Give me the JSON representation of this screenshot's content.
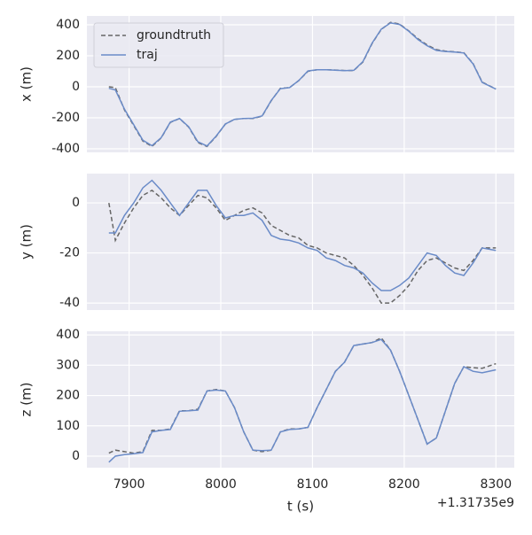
{
  "chart_data": [
    {
      "type": "line",
      "ylabel": "x (m)",
      "legend": "upper left",
      "grid": true,
      "x": [
        7878,
        7885,
        7895,
        7905,
        7915,
        7925,
        7935,
        7945,
        7955,
        7965,
        7975,
        7985,
        7995,
        8005,
        8015,
        8025,
        8035,
        8045,
        8055,
        8065,
        8075,
        8085,
        8095,
        8105,
        8115,
        8125,
        8135,
        8145,
        8155,
        8165,
        8175,
        8185,
        8195,
        8205,
        8215,
        8225,
        8235,
        8245,
        8255,
        8265,
        8275,
        8285,
        8300
      ],
      "xlim": [
        7854,
        8320
      ],
      "xticks": [
        7900,
        8000,
        8100,
        8200,
        8300
      ],
      "ylim": [
        -423,
        457
      ],
      "yticks": [
        -400,
        -200,
        0,
        200,
        400
      ],
      "series": [
        {
          "name": "groundtruth",
          "color": "#666666",
          "dash": true,
          "values": [
            0,
            -5,
            -150,
            -250,
            -350,
            -385,
            -330,
            -230,
            -205,
            -260,
            -360,
            -385,
            -320,
            -240,
            -210,
            -205,
            -205,
            -190,
            -90,
            -10,
            -5,
            40,
            100,
            110,
            110,
            108,
            105,
            105,
            160,
            280,
            370,
            415,
            405,
            360,
            310,
            270,
            240,
            230,
            225,
            220,
            150,
            30,
            -15
          ]
        },
        {
          "name": "traj",
          "color": "#6a8bc8",
          "dash": false,
          "values": [
            -10,
            -20,
            -145,
            -245,
            -345,
            -380,
            -328,
            -228,
            -205,
            -258,
            -355,
            -382,
            -318,
            -240,
            -210,
            -205,
            -203,
            -188,
            -88,
            -12,
            -5,
            40,
            102,
            110,
            110,
            107,
            104,
            106,
            162,
            282,
            372,
            412,
            402,
            358,
            305,
            265,
            235,
            228,
            224,
            218,
            148,
            28,
            -15
          ]
        }
      ]
    },
    {
      "type": "line",
      "ylabel": "y (m)",
      "grid": true,
      "x": [
        7878,
        7885,
        7895,
        7905,
        7915,
        7925,
        7935,
        7945,
        7955,
        7965,
        7975,
        7985,
        7995,
        8005,
        8015,
        8025,
        8035,
        8045,
        8055,
        8065,
        8075,
        8085,
        8095,
        8105,
        8115,
        8125,
        8135,
        8145,
        8155,
        8165,
        8175,
        8185,
        8195,
        8205,
        8215,
        8225,
        8235,
        8245,
        8255,
        8265,
        8275,
        8285,
        8300
      ],
      "xlim": [
        7854,
        8320
      ],
      "xticks": [
        7900,
        8000,
        8100,
        8200,
        8300
      ],
      "ylim": [
        -42.8,
        11.7
      ],
      "yticks": [
        -40,
        -20,
        0
      ],
      "series": [
        {
          "name": "groundtruth",
          "color": "#666666",
          "dash": true,
          "values": [
            0,
            -15,
            -8,
            -2,
            3,
            5,
            2,
            -2,
            -5,
            -1,
            3,
            2,
            -2,
            -7,
            -5,
            -3,
            -2,
            -4,
            -9,
            -11,
            -13,
            -14,
            -17,
            -18,
            -20,
            -21,
            -22,
            -25,
            -29,
            -34,
            -40,
            -40,
            -37,
            -33,
            -27,
            -23,
            -22,
            -24,
            -26,
            -27,
            -23,
            -18,
            -18
          ]
        },
        {
          "name": "traj",
          "color": "#6a8bc8",
          "dash": false,
          "values": [
            -12,
            -12,
            -5,
            0,
            6,
            9,
            5,
            0,
            -5,
            0,
            5,
            5,
            -1,
            -6,
            -5,
            -5,
            -4,
            -7,
            -13,
            -14.5,
            -15,
            -16,
            -18,
            -19,
            -22,
            -23,
            -25,
            -26,
            -28,
            -32,
            -35,
            -35,
            -33,
            -30,
            -25,
            -20,
            -21,
            -25,
            -28,
            -29,
            -24,
            -18,
            -19
          ]
        }
      ]
    },
    {
      "type": "line",
      "ylabel": "z (m)",
      "xlabel": "t (s)",
      "x_offset_label": "+1.31735e9",
      "grid": true,
      "x": [
        7878,
        7885,
        7895,
        7905,
        7915,
        7925,
        7935,
        7945,
        7955,
        7965,
        7975,
        7985,
        7995,
        8005,
        8015,
        8025,
        8035,
        8045,
        8055,
        8065,
        8075,
        8085,
        8095,
        8105,
        8115,
        8125,
        8135,
        8145,
        8155,
        8165,
        8175,
        8185,
        8195,
        8205,
        8215,
        8225,
        8235,
        8245,
        8255,
        8265,
        8275,
        8285,
        8300
      ],
      "xlim": [
        7854,
        8320
      ],
      "xticks": [
        7900,
        8000,
        8100,
        8200,
        8300
      ],
      "ylim": [
        -38,
        412
      ],
      "yticks": [
        0,
        100,
        200,
        300,
        400
      ],
      "series": [
        {
          "name": "groundtruth",
          "color": "#666666",
          "dash": true,
          "values": [
            10,
            20,
            15,
            10,
            15,
            85,
            85,
            90,
            150,
            150,
            155,
            215,
            220,
            215,
            160,
            80,
            20,
            15,
            20,
            80,
            90,
            90,
            95,
            160,
            220,
            280,
            310,
            365,
            370,
            375,
            390,
            350,
            280,
            200,
            120,
            40,
            60,
            150,
            240,
            295,
            292,
            290,
            305
          ]
        },
        {
          "name": "traj",
          "color": "#6a8bc8",
          "dash": false,
          "values": [
            -20,
            0,
            5,
            8,
            12,
            80,
            85,
            88,
            148,
            150,
            152,
            215,
            218,
            215,
            160,
            80,
            20,
            18,
            20,
            80,
            88,
            90,
            95,
            160,
            220,
            280,
            310,
            365,
            370,
            375,
            385,
            350,
            280,
            200,
            120,
            40,
            60,
            150,
            240,
            295,
            280,
            275,
            285
          ]
        }
      ]
    }
  ]
}
